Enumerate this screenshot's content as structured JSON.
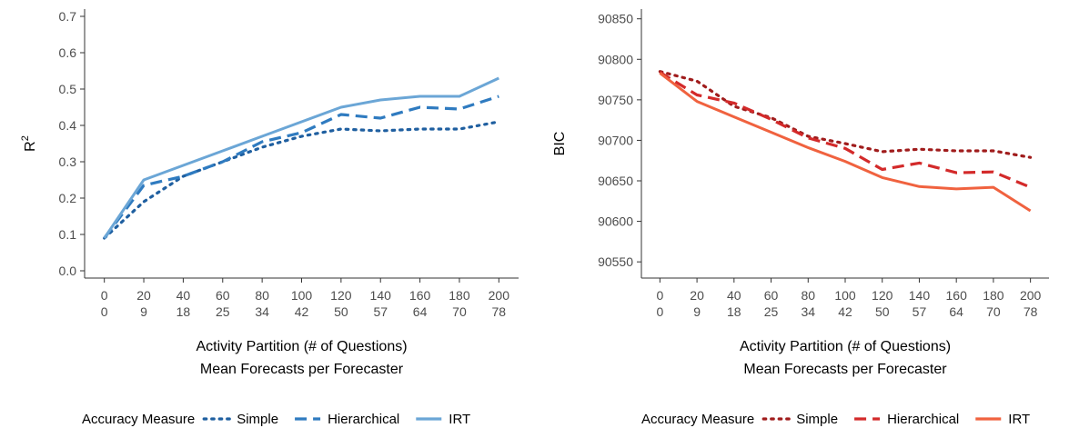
{
  "chart_data": [
    {
      "type": "line",
      "title": "",
      "ylabel": "R",
      "ylabel_sup": "2",
      "xlabel_lines": [
        "Activity Partition (# of Questions)",
        "Mean Forecasts per Forecaster"
      ],
      "x_tick_top": [
        "0",
        "20",
        "40",
        "60",
        "80",
        "100",
        "120",
        "140",
        "160",
        "180",
        "200"
      ],
      "x_tick_bottom": [
        "0",
        "9",
        "18",
        "25",
        "34",
        "42",
        "50",
        "57",
        "64",
        "70",
        "78"
      ],
      "x": [
        0,
        20,
        40,
        60,
        80,
        100,
        120,
        140,
        160,
        180,
        200
      ],
      "xlim": [
        -10,
        210
      ],
      "ylim": [
        -0.02,
        0.72
      ],
      "yticks": [
        0.0,
        0.1,
        0.2,
        0.3,
        0.4,
        0.5,
        0.6,
        0.7
      ],
      "ytick_labels": [
        "0.0",
        "0.1",
        "0.2",
        "0.3",
        "0.4",
        "0.5",
        "0.6",
        "0.7"
      ],
      "legend": {
        "title": "Accuracy Measure",
        "placement": "bottom"
      },
      "series": [
        {
          "name": "Simple",
          "style": "dotted",
          "color": "#1f5fa0",
          "values": [
            0.09,
            0.19,
            0.26,
            0.3,
            0.34,
            0.37,
            0.39,
            0.385,
            0.39,
            0.39,
            0.41
          ]
        },
        {
          "name": "Hierarchical",
          "style": "dashed",
          "color": "#2f7bc0",
          "values": [
            0.09,
            0.235,
            0.26,
            0.3,
            0.355,
            0.38,
            0.43,
            0.42,
            0.45,
            0.445,
            0.48
          ]
        },
        {
          "name": "IRT",
          "style": "solid",
          "color": "#6ba6d6",
          "values": [
            0.09,
            0.25,
            0.29,
            0.33,
            0.37,
            0.41,
            0.45,
            0.47,
            0.48,
            0.48,
            0.53
          ]
        }
      ]
    },
    {
      "type": "line",
      "title": "",
      "ylabel": "BIC",
      "ylabel_sup": "",
      "xlabel_lines": [
        "Activity Partition (# of Questions)",
        "Mean Forecasts per Forecaster"
      ],
      "x_tick_top": [
        "0",
        "20",
        "40",
        "60",
        "80",
        "100",
        "120",
        "140",
        "160",
        "180",
        "200"
      ],
      "x_tick_bottom": [
        "0",
        "9",
        "18",
        "25",
        "34",
        "42",
        "50",
        "57",
        "64",
        "70",
        "78"
      ],
      "x": [
        0,
        20,
        40,
        60,
        80,
        100,
        120,
        140,
        160,
        180,
        200
      ],
      "xlim": [
        -10,
        210
      ],
      "ylim": [
        90530,
        90862
      ],
      "yticks": [
        90550,
        90600,
        90650,
        90700,
        90750,
        90800,
        90850
      ],
      "ytick_labels": [
        "90550",
        "90600",
        "90650",
        "90700",
        "90750",
        "90800",
        "90850"
      ],
      "legend": {
        "title": "Accuracy Measure",
        "placement": "bottom"
      },
      "series": [
        {
          "name": "Simple",
          "style": "dotted",
          "color": "#a01c1c",
          "values": [
            90785,
            90773,
            90742,
            90728,
            90705,
            90696,
            90686,
            90689,
            90687,
            90687,
            90679
          ]
        },
        {
          "name": "Hierarchical",
          "style": "dashed",
          "color": "#d32a2a",
          "values": [
            90784,
            90756,
            90746,
            90726,
            90703,
            90690,
            90664,
            90672,
            90660,
            90661,
            90642
          ]
        },
        {
          "name": "IRT",
          "style": "solid",
          "color": "#f0623f",
          "values": [
            90783,
            90748,
            90729,
            90710,
            90691,
            90674,
            90654,
            90643,
            90640,
            90642,
            90613
          ]
        }
      ]
    }
  ]
}
